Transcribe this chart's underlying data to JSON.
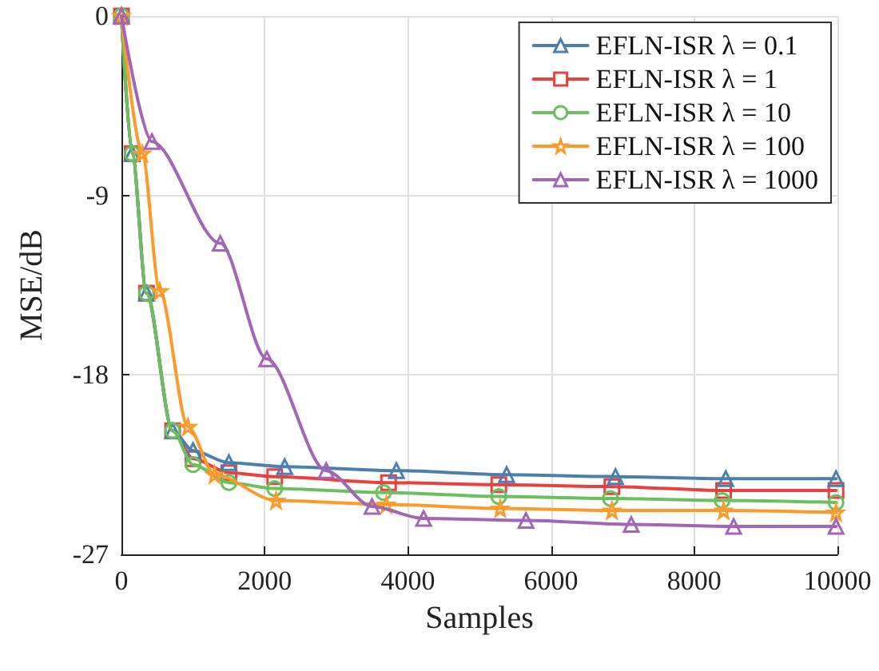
{
  "chart_data": {
    "type": "line",
    "xlabel": "Samples",
    "ylabel": "MSE/dB",
    "xlim": [
      0,
      10000
    ],
    "xticks": [
      0,
      2000,
      4000,
      6000,
      8000,
      10000
    ],
    "ylim": [
      -27,
      0
    ],
    "yticks": [
      -27,
      -18,
      -9,
      0
    ],
    "grid": true,
    "legend": "top right",
    "line_style": "solid",
    "series": [
      {
        "name": "EFLN-ISR λ = 0.1",
        "color": "#4a7fb0",
        "marker": "triangle",
        "x": [
          0,
          150,
          350,
          715,
          1000,
          1500,
          2280,
          3840,
          5380,
          6900,
          8440,
          9980
        ],
        "values": [
          0,
          -6.9,
          -13.9,
          -20.8,
          -21.8,
          -22.4,
          -22.6,
          -22.8,
          -23.0,
          -23.1,
          -23.2,
          -23.2
        ]
      },
      {
        "name": "EFLN-ISR λ = 1",
        "color": "#e8413f",
        "marker": "square",
        "x": [
          0,
          150,
          350,
          715,
          1000,
          1500,
          2140,
          3730,
          5270,
          6850,
          8410,
          9980
        ],
        "values": [
          0,
          -6.9,
          -13.9,
          -20.8,
          -22.2,
          -22.9,
          -23.1,
          -23.4,
          -23.5,
          -23.6,
          -23.8,
          -23.8
        ]
      },
      {
        "name": "EFLN-ISR λ = 10",
        "color": "#6abf5e",
        "marker": "circle",
        "x": [
          0,
          150,
          350,
          715,
          1000,
          1500,
          2140,
          3660,
          5270,
          6830,
          8390,
          9980
        ],
        "values": [
          0,
          -6.9,
          -13.9,
          -20.8,
          -22.5,
          -23.4,
          -23.7,
          -23.9,
          -24.1,
          -24.2,
          -24.3,
          -24.4
        ]
      },
      {
        "name": "EFLN-ISR λ = 100",
        "color": "#fd9a2a",
        "marker": "star",
        "x": [
          0,
          290,
          535,
          930,
          1300,
          2160,
          3700,
          5290,
          6850,
          8410,
          9980
        ],
        "values": [
          0,
          -6.9,
          -13.8,
          -20.6,
          -23.0,
          -24.3,
          -24.5,
          -24.7,
          -24.8,
          -24.8,
          -24.9
        ]
      },
      {
        "name": "EFLN-ISR λ = 1000",
        "color": "#a365b5",
        "marker": "triangle",
        "x": [
          0,
          425,
          1380,
          2030,
          2860,
          3500,
          4220,
          5650,
          7120,
          8550,
          9980
        ],
        "values": [
          0,
          -6.3,
          -11.4,
          -17.2,
          -22.8,
          -24.6,
          -25.2,
          -25.3,
          -25.5,
          -25.6,
          -25.6
        ]
      }
    ]
  }
}
